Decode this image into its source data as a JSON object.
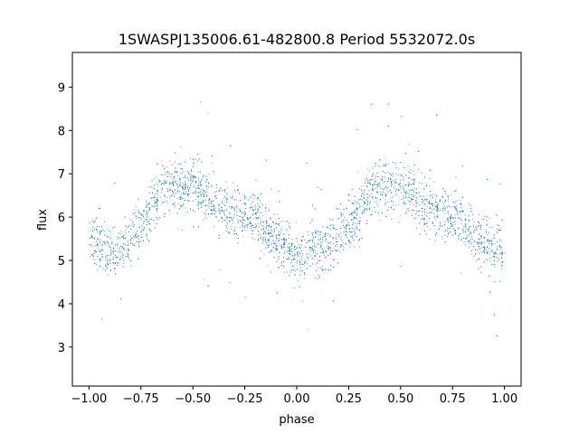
{
  "chart_data": {
    "type": "scatter",
    "title": "1SWASPJ135006.61-482800.8 Period 5532072.0s",
    "xlabel": "phase",
    "ylabel": "flux",
    "xlim": [
      -1.08,
      1.08
    ],
    "ylim": [
      2.1,
      9.8
    ],
    "xticks": [
      -1.0,
      -0.75,
      -0.5,
      -0.25,
      0.0,
      0.25,
      0.5,
      0.75,
      1.0
    ],
    "xtick_labels": [
      "−1.00",
      "−0.75",
      "−0.50",
      "−0.25",
      "0.00",
      "0.25",
      "0.50",
      "0.75",
      "1.00"
    ],
    "yticks": [
      3,
      4,
      5,
      6,
      7,
      8,
      9
    ],
    "ytick_labels": [
      "3",
      "4",
      "5",
      "6",
      "7",
      "8",
      "9"
    ],
    "grid": false,
    "point_color": "#1f77b4",
    "point_count": 5200,
    "series": [
      {
        "phase": [
          -1.0,
          -0.95,
          -0.9,
          -0.85,
          -0.8,
          -0.75,
          -0.7,
          -0.65,
          -0.6,
          -0.55,
          -0.5,
          -0.45,
          -0.4,
          -0.35,
          -0.3,
          -0.25,
          -0.2,
          -0.15,
          -0.1,
          -0.05,
          0.0,
          0.05,
          0.1,
          0.15,
          0.2,
          0.25,
          0.3,
          0.35,
          0.4,
          0.45,
          0.5,
          0.55,
          0.6,
          0.65,
          0.7,
          0.75,
          0.8,
          0.85,
          0.9,
          0.95,
          1.0
        ],
        "mean_flux": [
          5.5,
          5.4,
          5.2,
          5.3,
          5.6,
          5.8,
          6.2,
          6.6,
          6.7,
          6.7,
          6.8,
          6.6,
          6.3,
          6.2,
          6.1,
          6.0,
          6.0,
          5.7,
          5.5,
          5.3,
          5.1,
          5.3,
          5.2,
          5.4,
          5.6,
          5.8,
          6.1,
          6.6,
          6.7,
          6.7,
          6.8,
          6.6,
          6.3,
          6.2,
          6.1,
          6.0,
          6.0,
          5.6,
          5.4,
          5.3,
          5.2
        ],
        "scatter_halfwidth": 0.55
      }
    ]
  }
}
